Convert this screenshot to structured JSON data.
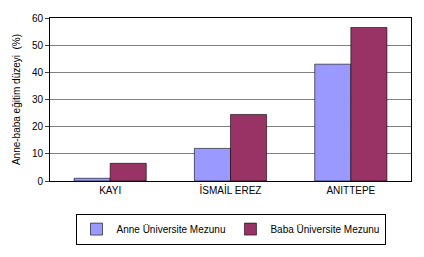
{
  "chart_data": {
    "type": "bar",
    "categories": [
      "KAYI",
      "İSMAİL EREZ",
      "ANITTEPE"
    ],
    "series": [
      {
        "name": "Anne Üniversite Mezunu",
        "color": "#9999ff",
        "values": [
          1,
          12,
          43
        ]
      },
      {
        "name": "Baba Üniversite Mezunu",
        "color": "#993366",
        "values": [
          6.5,
          24.5,
          56.5
        ]
      }
    ],
    "y_label": "Anne-baba eğitim düzeyi  (%)",
    "ylim": [
      0,
      60
    ],
    "yticks": [
      0,
      10,
      20,
      30,
      40,
      50,
      60
    ],
    "grid": true,
    "legend": "bottom"
  }
}
